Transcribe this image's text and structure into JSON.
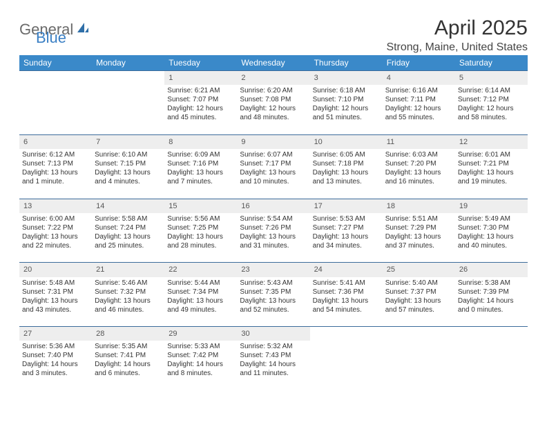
{
  "logo": {
    "text_general": "General",
    "text_blue": "Blue"
  },
  "title": "April 2025",
  "location": "Strong, Maine, United States",
  "colors": {
    "header_bg": "#3a89c9",
    "header_text": "#ffffff",
    "daynum_bg": "#eeeeee",
    "border": "#3a6a9a",
    "text": "#333333",
    "logo_gray": "#6a6a6a",
    "logo_blue": "#3a7fc4"
  },
  "day_headers": [
    "Sunday",
    "Monday",
    "Tuesday",
    "Wednesday",
    "Thursday",
    "Friday",
    "Saturday"
  ],
  "weeks": [
    {
      "nums": [
        "",
        "",
        "1",
        "2",
        "3",
        "4",
        "5"
      ],
      "cells": [
        null,
        null,
        {
          "sunrise": "Sunrise: 6:21 AM",
          "sunset": "Sunset: 7:07 PM",
          "daylight1": "Daylight: 12 hours",
          "daylight2": "and 45 minutes."
        },
        {
          "sunrise": "Sunrise: 6:20 AM",
          "sunset": "Sunset: 7:08 PM",
          "daylight1": "Daylight: 12 hours",
          "daylight2": "and 48 minutes."
        },
        {
          "sunrise": "Sunrise: 6:18 AM",
          "sunset": "Sunset: 7:10 PM",
          "daylight1": "Daylight: 12 hours",
          "daylight2": "and 51 minutes."
        },
        {
          "sunrise": "Sunrise: 6:16 AM",
          "sunset": "Sunset: 7:11 PM",
          "daylight1": "Daylight: 12 hours",
          "daylight2": "and 55 minutes."
        },
        {
          "sunrise": "Sunrise: 6:14 AM",
          "sunset": "Sunset: 7:12 PM",
          "daylight1": "Daylight: 12 hours",
          "daylight2": "and 58 minutes."
        }
      ]
    },
    {
      "nums": [
        "6",
        "7",
        "8",
        "9",
        "10",
        "11",
        "12"
      ],
      "cells": [
        {
          "sunrise": "Sunrise: 6:12 AM",
          "sunset": "Sunset: 7:13 PM",
          "daylight1": "Daylight: 13 hours",
          "daylight2": "and 1 minute."
        },
        {
          "sunrise": "Sunrise: 6:10 AM",
          "sunset": "Sunset: 7:15 PM",
          "daylight1": "Daylight: 13 hours",
          "daylight2": "and 4 minutes."
        },
        {
          "sunrise": "Sunrise: 6:09 AM",
          "sunset": "Sunset: 7:16 PM",
          "daylight1": "Daylight: 13 hours",
          "daylight2": "and 7 minutes."
        },
        {
          "sunrise": "Sunrise: 6:07 AM",
          "sunset": "Sunset: 7:17 PM",
          "daylight1": "Daylight: 13 hours",
          "daylight2": "and 10 minutes."
        },
        {
          "sunrise": "Sunrise: 6:05 AM",
          "sunset": "Sunset: 7:18 PM",
          "daylight1": "Daylight: 13 hours",
          "daylight2": "and 13 minutes."
        },
        {
          "sunrise": "Sunrise: 6:03 AM",
          "sunset": "Sunset: 7:20 PM",
          "daylight1": "Daylight: 13 hours",
          "daylight2": "and 16 minutes."
        },
        {
          "sunrise": "Sunrise: 6:01 AM",
          "sunset": "Sunset: 7:21 PM",
          "daylight1": "Daylight: 13 hours",
          "daylight2": "and 19 minutes."
        }
      ]
    },
    {
      "nums": [
        "13",
        "14",
        "15",
        "16",
        "17",
        "18",
        "19"
      ],
      "cells": [
        {
          "sunrise": "Sunrise: 6:00 AM",
          "sunset": "Sunset: 7:22 PM",
          "daylight1": "Daylight: 13 hours",
          "daylight2": "and 22 minutes."
        },
        {
          "sunrise": "Sunrise: 5:58 AM",
          "sunset": "Sunset: 7:24 PM",
          "daylight1": "Daylight: 13 hours",
          "daylight2": "and 25 minutes."
        },
        {
          "sunrise": "Sunrise: 5:56 AM",
          "sunset": "Sunset: 7:25 PM",
          "daylight1": "Daylight: 13 hours",
          "daylight2": "and 28 minutes."
        },
        {
          "sunrise": "Sunrise: 5:54 AM",
          "sunset": "Sunset: 7:26 PM",
          "daylight1": "Daylight: 13 hours",
          "daylight2": "and 31 minutes."
        },
        {
          "sunrise": "Sunrise: 5:53 AM",
          "sunset": "Sunset: 7:27 PM",
          "daylight1": "Daylight: 13 hours",
          "daylight2": "and 34 minutes."
        },
        {
          "sunrise": "Sunrise: 5:51 AM",
          "sunset": "Sunset: 7:29 PM",
          "daylight1": "Daylight: 13 hours",
          "daylight2": "and 37 minutes."
        },
        {
          "sunrise": "Sunrise: 5:49 AM",
          "sunset": "Sunset: 7:30 PM",
          "daylight1": "Daylight: 13 hours",
          "daylight2": "and 40 minutes."
        }
      ]
    },
    {
      "nums": [
        "20",
        "21",
        "22",
        "23",
        "24",
        "25",
        "26"
      ],
      "cells": [
        {
          "sunrise": "Sunrise: 5:48 AM",
          "sunset": "Sunset: 7:31 PM",
          "daylight1": "Daylight: 13 hours",
          "daylight2": "and 43 minutes."
        },
        {
          "sunrise": "Sunrise: 5:46 AM",
          "sunset": "Sunset: 7:32 PM",
          "daylight1": "Daylight: 13 hours",
          "daylight2": "and 46 minutes."
        },
        {
          "sunrise": "Sunrise: 5:44 AM",
          "sunset": "Sunset: 7:34 PM",
          "daylight1": "Daylight: 13 hours",
          "daylight2": "and 49 minutes."
        },
        {
          "sunrise": "Sunrise: 5:43 AM",
          "sunset": "Sunset: 7:35 PM",
          "daylight1": "Daylight: 13 hours",
          "daylight2": "and 52 minutes."
        },
        {
          "sunrise": "Sunrise: 5:41 AM",
          "sunset": "Sunset: 7:36 PM",
          "daylight1": "Daylight: 13 hours",
          "daylight2": "and 54 minutes."
        },
        {
          "sunrise": "Sunrise: 5:40 AM",
          "sunset": "Sunset: 7:37 PM",
          "daylight1": "Daylight: 13 hours",
          "daylight2": "and 57 minutes."
        },
        {
          "sunrise": "Sunrise: 5:38 AM",
          "sunset": "Sunset: 7:39 PM",
          "daylight1": "Daylight: 14 hours",
          "daylight2": "and 0 minutes."
        }
      ]
    },
    {
      "nums": [
        "27",
        "28",
        "29",
        "30",
        "",
        "",
        ""
      ],
      "cells": [
        {
          "sunrise": "Sunrise: 5:36 AM",
          "sunset": "Sunset: 7:40 PM",
          "daylight1": "Daylight: 14 hours",
          "daylight2": "and 3 minutes."
        },
        {
          "sunrise": "Sunrise: 5:35 AM",
          "sunset": "Sunset: 7:41 PM",
          "daylight1": "Daylight: 14 hours",
          "daylight2": "and 6 minutes."
        },
        {
          "sunrise": "Sunrise: 5:33 AM",
          "sunset": "Sunset: 7:42 PM",
          "daylight1": "Daylight: 14 hours",
          "daylight2": "and 8 minutes."
        },
        {
          "sunrise": "Sunrise: 5:32 AM",
          "sunset": "Sunset: 7:43 PM",
          "daylight1": "Daylight: 14 hours",
          "daylight2": "and 11 minutes."
        },
        null,
        null,
        null
      ]
    }
  ]
}
